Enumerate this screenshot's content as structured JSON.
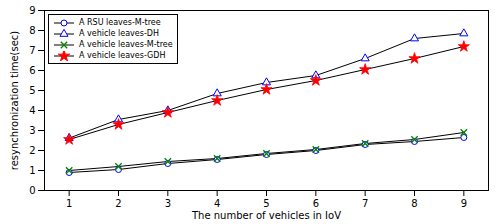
{
  "chart_data": {
    "type": "line",
    "xlabel": "The number of vehicles in IoV",
    "ylabel": "resynchronization time(sec)",
    "x": [
      1,
      2,
      3,
      4,
      5,
      6,
      7,
      8,
      9
    ],
    "color": "#000000",
    "series": [
      {
        "name": "A RSU leaves-M-tree",
        "color": "#0000ff",
        "marker": "circle",
        "values": [
          0.9,
          1.05,
          1.35,
          1.55,
          1.8,
          2.0,
          2.3,
          2.45,
          2.65
        ]
      },
      {
        "name": "A vehicle leaves-DH",
        "color": "#0000ff",
        "marker": "triangle",
        "values": [
          2.62,
          3.55,
          4.0,
          4.85,
          5.4,
          5.75,
          6.6,
          7.6,
          7.85
        ]
      },
      {
        "name": "A vehicle leaves-M-tree",
        "color": "#008000",
        "marker": "x",
        "values": [
          1.0,
          1.2,
          1.45,
          1.6,
          1.85,
          2.05,
          2.35,
          2.55,
          2.9
        ]
      },
      {
        "name": "A vehicle leaves-GDH",
        "color": "#ff0000",
        "marker": "star",
        "values": [
          2.55,
          3.3,
          3.9,
          4.5,
          5.05,
          5.5,
          6.05,
          6.6,
          7.2
        ]
      }
    ],
    "xlim": [
      0.5,
      9.5
    ],
    "xticks": [
      1,
      2,
      3,
      4,
      5,
      6,
      7,
      8,
      9
    ],
    "ylim": [
      0,
      9
    ],
    "yticks": [
      0,
      1,
      2,
      3,
      4,
      5,
      6,
      7,
      8,
      9
    ],
    "grid": false,
    "legend": "upper left"
  }
}
